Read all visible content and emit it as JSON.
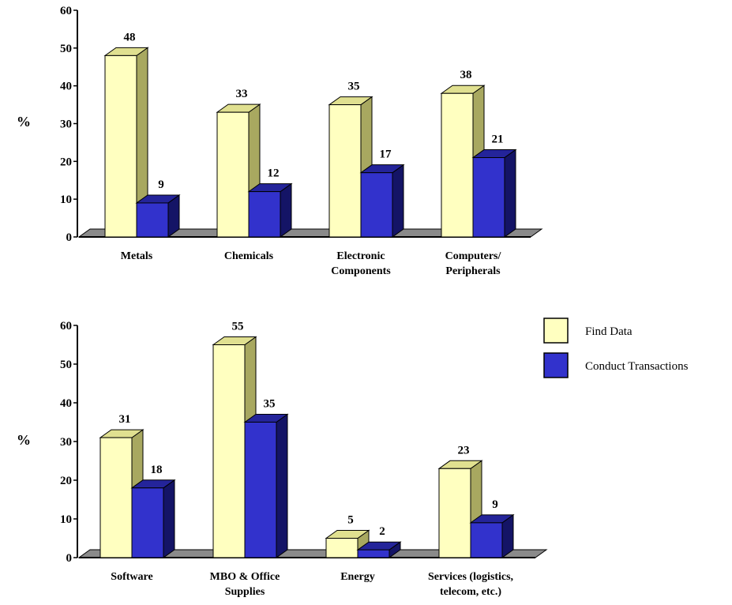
{
  "legend": [
    {
      "label": "Find Data",
      "color": "#ffffc0"
    },
    {
      "label": "Conduct Transactions",
      "color": "#3232cc"
    }
  ],
  "chart_data": [
    {
      "type": "bar",
      "ylabel": "%",
      "ylim": [
        0,
        60
      ],
      "yticks": [
        "0",
        "10",
        "20",
        "30",
        "40",
        "50",
        "60"
      ],
      "categories": [
        [
          "Metals"
        ],
        [
          "Chemicals"
        ],
        [
          "Electronic",
          "Components"
        ],
        [
          "Computers/",
          "Peripherals"
        ]
      ],
      "series": [
        {
          "name": "Find Data",
          "values": [
            48,
            33,
            35,
            38
          ]
        },
        {
          "name": "Conduct Transactions",
          "values": [
            9,
            12,
            17,
            21
          ]
        }
      ]
    },
    {
      "type": "bar",
      "ylabel": "%",
      "ylim": [
        0,
        60
      ],
      "yticks": [
        "0",
        "10",
        "20",
        "30",
        "40",
        "50",
        "60"
      ],
      "categories": [
        [
          "Software"
        ],
        [
          "MBO & Office",
          "Supplies"
        ],
        [
          "Energy"
        ],
        [
          "Services (logistics,",
          "telecom, etc.)"
        ]
      ],
      "series": [
        {
          "name": "Find Data",
          "values": [
            31,
            55,
            5,
            23
          ]
        },
        {
          "name": "Conduct Transactions",
          "values": [
            18,
            35,
            2,
            9
          ]
        }
      ]
    }
  ]
}
